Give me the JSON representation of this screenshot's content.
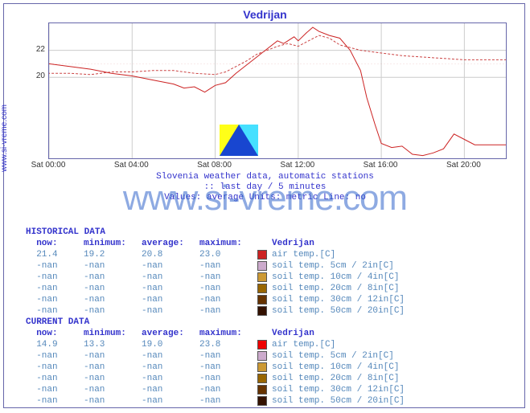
{
  "title": "Vedrijan",
  "side_label": "www.si-vreme.com",
  "watermark_text": "www.si-vreme.com",
  "meta_line1": "Slovenia weather data, automatic stations",
  "meta_line2": ":: last day / 5 minutes",
  "meta_line3": "Values: average  Units: metric  Line: no",
  "chart": {
    "type": "line",
    "background_color": "#ffffff",
    "grid_color": "#cccccc",
    "dashed_grid_color": "#dd9999",
    "ylim": [
      14,
      24
    ],
    "ytick_labels": [
      20,
      22
    ],
    "ytick_positions": [
      20,
      22
    ],
    "xlim": [
      0,
      22
    ],
    "xtick_labels": [
      "Sat 00:00",
      "Sat 04:00",
      "Sat 08:00",
      "Sat 12:00",
      "Sat 16:00",
      "Sat 20:00"
    ],
    "xtick_positions": [
      0,
      4,
      8,
      12,
      16,
      20
    ],
    "label_fontsize": 10,
    "series": [
      {
        "name": "solid",
        "color": "#cc2222",
        "dash": "none",
        "width": 1,
        "points": [
          [
            -2,
            20.8
          ],
          [
            -1,
            20.9
          ],
          [
            0,
            21.0
          ],
          [
            1,
            20.8
          ],
          [
            2,
            20.6
          ],
          [
            3,
            20.3
          ],
          [
            4,
            20.1
          ],
          [
            5,
            19.8
          ],
          [
            6,
            19.5
          ],
          [
            6.5,
            19.2
          ],
          [
            7,
            19.3
          ],
          [
            7.5,
            18.9
          ],
          [
            8,
            19.4
          ],
          [
            8.5,
            19.6
          ],
          [
            9,
            20.3
          ],
          [
            9.5,
            20.9
          ],
          [
            10,
            21.5
          ],
          [
            10.5,
            22.1
          ],
          [
            11,
            22.7
          ],
          [
            11.3,
            22.5
          ],
          [
            11.8,
            23.0
          ],
          [
            12,
            22.7
          ],
          [
            12.4,
            23.3
          ],
          [
            12.7,
            23.7
          ],
          [
            13,
            23.4
          ],
          [
            13.5,
            23.1
          ],
          [
            14,
            22.9
          ],
          [
            14.5,
            22.0
          ],
          [
            15,
            20.5
          ],
          [
            15.3,
            18.5
          ],
          [
            15.7,
            16.5
          ],
          [
            16,
            15.1
          ],
          [
            16.5,
            14.8
          ],
          [
            17,
            14.9
          ],
          [
            17.5,
            14.3
          ],
          [
            18,
            14.2
          ],
          [
            18.5,
            14.4
          ],
          [
            19,
            14.7
          ],
          [
            19.5,
            15.8
          ],
          [
            20,
            15.4
          ],
          [
            20.5,
            15.0
          ],
          [
            21,
            15.0
          ],
          [
            22,
            15.0
          ]
        ]
      },
      {
        "name": "dashed",
        "color": "#cc4444",
        "dash": "3,2",
        "width": 1,
        "points": [
          [
            -2,
            20.0
          ],
          [
            -1,
            20.2
          ],
          [
            0,
            20.3
          ],
          [
            1,
            20.3
          ],
          [
            2,
            20.2
          ],
          [
            3,
            20.4
          ],
          [
            4,
            20.4
          ],
          [
            5,
            20.5
          ],
          [
            6,
            20.5
          ],
          [
            7,
            20.3
          ],
          [
            8,
            20.2
          ],
          [
            8.5,
            20.4
          ],
          [
            9,
            20.8
          ],
          [
            9.5,
            21.2
          ],
          [
            10,
            21.7
          ],
          [
            10.5,
            22.0
          ],
          [
            11,
            22.3
          ],
          [
            11.5,
            22.5
          ],
          [
            12,
            22.3
          ],
          [
            12.5,
            22.7
          ],
          [
            13,
            23.1
          ],
          [
            13.5,
            22.9
          ],
          [
            14,
            22.4
          ],
          [
            14.5,
            22.2
          ],
          [
            15,
            22.0
          ],
          [
            15.5,
            21.9
          ],
          [
            16,
            21.8
          ],
          [
            17,
            21.6
          ],
          [
            18,
            21.5
          ],
          [
            19,
            21.4
          ],
          [
            20,
            21.3
          ],
          [
            21,
            21.3
          ],
          [
            22,
            21.3
          ]
        ]
      }
    ]
  },
  "historical": {
    "title": "HISTORICAL DATA",
    "headers": [
      "now:",
      "minimum:",
      "average:",
      "maximum:"
    ],
    "station": "Vedrijan",
    "rows": [
      {
        "now": "21.4",
        "min": "19.2",
        "avg": "20.8",
        "max": "23.0",
        "color": "#cc2222",
        "desc": "air temp.[C]"
      },
      {
        "now": "-nan",
        "min": "-nan",
        "avg": "-nan",
        "max": "-nan",
        "color": "#ccaacc",
        "desc": "soil temp. 5cm / 2in[C]"
      },
      {
        "now": "-nan",
        "min": "-nan",
        "avg": "-nan",
        "max": "-nan",
        "color": "#cc9933",
        "desc": "soil temp. 10cm / 4in[C]"
      },
      {
        "now": "-nan",
        "min": "-nan",
        "avg": "-nan",
        "max": "-nan",
        "color": "#996600",
        "desc": "soil temp. 20cm / 8in[C]"
      },
      {
        "now": "-nan",
        "min": "-nan",
        "avg": "-nan",
        "max": "-nan",
        "color": "#663300",
        "desc": "soil temp. 30cm / 12in[C]"
      },
      {
        "now": "-nan",
        "min": "-nan",
        "avg": "-nan",
        "max": "-nan",
        "color": "#331100",
        "desc": "soil temp. 50cm / 20in[C]"
      }
    ]
  },
  "current": {
    "title": "CURRENT DATA",
    "headers": [
      "now:",
      "minimum:",
      "average:",
      "maximum:"
    ],
    "station": "Vedrijan",
    "rows": [
      {
        "now": "14.9",
        "min": "13.3",
        "avg": "19.0",
        "max": "23.8",
        "color": "#ee0000",
        "desc": "air temp.[C]"
      },
      {
        "now": "-nan",
        "min": "-nan",
        "avg": "-nan",
        "max": "-nan",
        "color": "#ccaacc",
        "desc": "soil temp. 5cm / 2in[C]"
      },
      {
        "now": "-nan",
        "min": "-nan",
        "avg": "-nan",
        "max": "-nan",
        "color": "#cc9933",
        "desc": "soil temp. 10cm / 4in[C]"
      },
      {
        "now": "-nan",
        "min": "-nan",
        "avg": "-nan",
        "max": "-nan",
        "color": "#996600",
        "desc": "soil temp. 20cm / 8in[C]"
      },
      {
        "now": "-nan",
        "min": "-nan",
        "avg": "-nan",
        "max": "-nan",
        "color": "#663300",
        "desc": "soil temp. 30cm / 12in[C]"
      },
      {
        "now": "-nan",
        "min": "-nan",
        "avg": "-nan",
        "max": "-nan",
        "color": "#331100",
        "desc": "soil temp. 50cm / 20in[C]"
      }
    ]
  }
}
